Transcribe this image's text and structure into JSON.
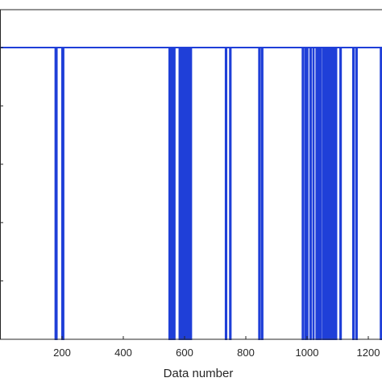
{
  "chart_data": {
    "type": "line",
    "title": "",
    "xlabel": "Data number",
    "ylabel": "",
    "xlim": [
      0,
      1300
    ],
    "ylim": [
      0,
      1
    ],
    "x_ticks": [
      200,
      400,
      600,
      800,
      1000,
      1200
    ],
    "x_tick_labels": [
      "200",
      "400",
      "600",
      "800",
      "1000",
      "1200"
    ],
    "y_ticks": [
      0,
      0.2,
      0.4,
      0.6,
      0.8,
      1
    ],
    "grid": false,
    "legend": "none",
    "series": [
      {
        "name": "",
        "color": "#1f3fd8",
        "high": 1,
        "low": 0,
        "low_intervals": [
          [
            178,
            183
          ],
          [
            200,
            205
          ],
          [
            550,
            553
          ],
          [
            556,
            558
          ],
          [
            561,
            563
          ],
          [
            566,
            568
          ],
          [
            583,
            586
          ],
          [
            590,
            592
          ],
          [
            595,
            597
          ],
          [
            600,
            602
          ],
          [
            605,
            607
          ],
          [
            610,
            612
          ],
          [
            615,
            617
          ],
          [
            620,
            622
          ],
          [
            734,
            737
          ],
          [
            748,
            751
          ],
          [
            843,
            846
          ],
          [
            852,
            855
          ],
          [
            985,
            988
          ],
          [
            994,
            997
          ],
          [
            1000,
            1002
          ],
          [
            1010,
            1013
          ],
          [
            1020,
            1022
          ],
          [
            1030,
            1033
          ],
          [
            1038,
            1040
          ],
          [
            1044,
            1046
          ],
          [
            1052,
            1054
          ],
          [
            1058,
            1060
          ],
          [
            1064,
            1066
          ],
          [
            1070,
            1072
          ],
          [
            1076,
            1078
          ],
          [
            1082,
            1084
          ],
          [
            1088,
            1090
          ],
          [
            1094,
            1096
          ],
          [
            1108,
            1111
          ],
          [
            1150,
            1153
          ],
          [
            1160,
            1163
          ],
          [
            1240,
            1243
          ]
        ]
      }
    ]
  }
}
